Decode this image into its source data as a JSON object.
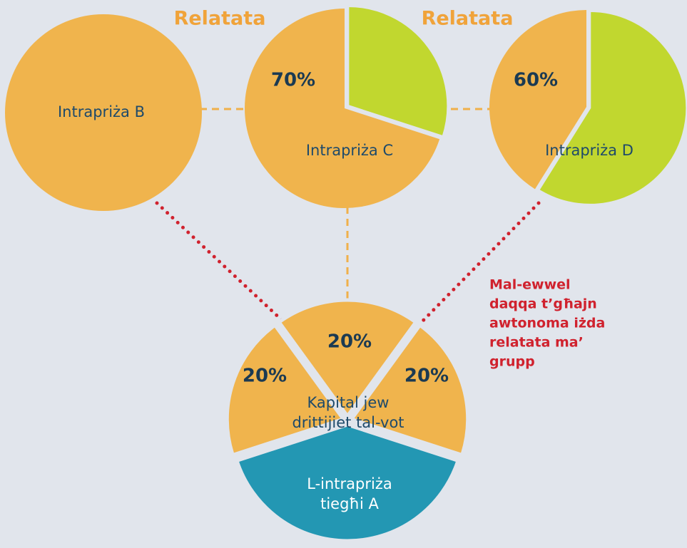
{
  "relatata_left": "Relatata",
  "relatata_right": "Relatata",
  "enterprise_b": "Intrapriża B",
  "enterprise_c": {
    "label": "Intrapriża C",
    "share": "70%"
  },
  "enterprise_d": {
    "label": "Intrapriża D",
    "share": "60%"
  },
  "enterprise_a": {
    "label_lines": [
      "L-intrapriża",
      "tiegħi A"
    ],
    "capital_lines": [
      "Kapital jew",
      "drittijiet tal-vot"
    ],
    "shares": [
      "20%",
      "20%",
      "20%"
    ]
  },
  "note_lines": [
    "Mal-ewwel",
    "daqqa t’għajn",
    "awtonoma iżda",
    "relatata ma’",
    "grupp"
  ]
}
